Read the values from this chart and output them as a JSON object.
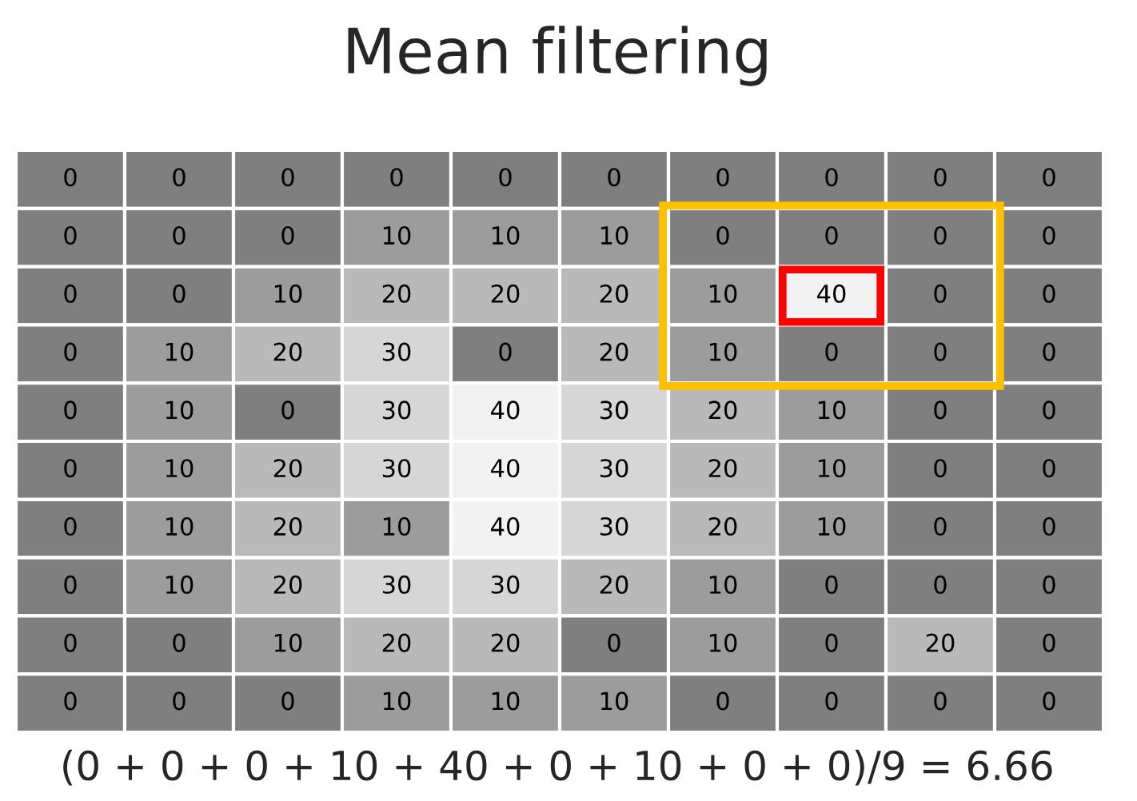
{
  "chart_data": {
    "type": "heatmap",
    "title": "Mean filtering",
    "categories": [
      null,
      null,
      null,
      null,
      null,
      null,
      null,
      null,
      null,
      null
    ],
    "y_categories": [
      null,
      null,
      null,
      null,
      null,
      null,
      null,
      null,
      null,
      null
    ],
    "cells": [
      [
        0,
        0,
        0,
        0,
        0,
        0,
        0,
        0,
        0,
        0
      ],
      [
        0,
        0,
        0,
        10,
        10,
        10,
        0,
        0,
        0,
        0
      ],
      [
        0,
        0,
        10,
        20,
        20,
        20,
        10,
        40,
        0,
        0
      ],
      [
        0,
        10,
        20,
        30,
        0,
        20,
        10,
        0,
        0,
        0
      ],
      [
        0,
        10,
        0,
        30,
        40,
        30,
        20,
        10,
        0,
        0
      ],
      [
        0,
        10,
        20,
        30,
        40,
        30,
        20,
        10,
        0,
        0
      ],
      [
        0,
        10,
        20,
        10,
        40,
        30,
        20,
        10,
        0,
        0
      ],
      [
        0,
        10,
        20,
        30,
        30,
        20,
        10,
        0,
        0,
        0
      ],
      [
        0,
        0,
        10,
        20,
        20,
        0,
        10,
        0,
        20,
        0
      ],
      [
        0,
        0,
        0,
        10,
        10,
        10,
        0,
        0,
        0,
        0
      ]
    ],
    "data_labels": true,
    "annotations": [
      "(0 + 0 + 0 + 10 + 40 + 0 + 10 + 0 + 0)/9 = 6.66"
    ]
  }
}
